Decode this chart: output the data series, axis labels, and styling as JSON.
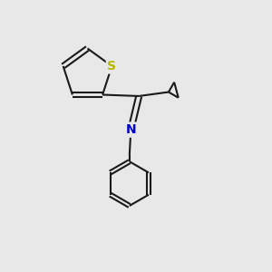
{
  "background_color": "#e8e8e8",
  "bond_color": "#1a1a1a",
  "sulfur_color": "#b8b800",
  "nitrogen_color": "#0000cc",
  "bond_width": 1.5,
  "figsize": [
    3.0,
    3.0
  ],
  "dpi": 100,
  "xlim": [
    0,
    10
  ],
  "ylim": [
    0,
    10
  ]
}
